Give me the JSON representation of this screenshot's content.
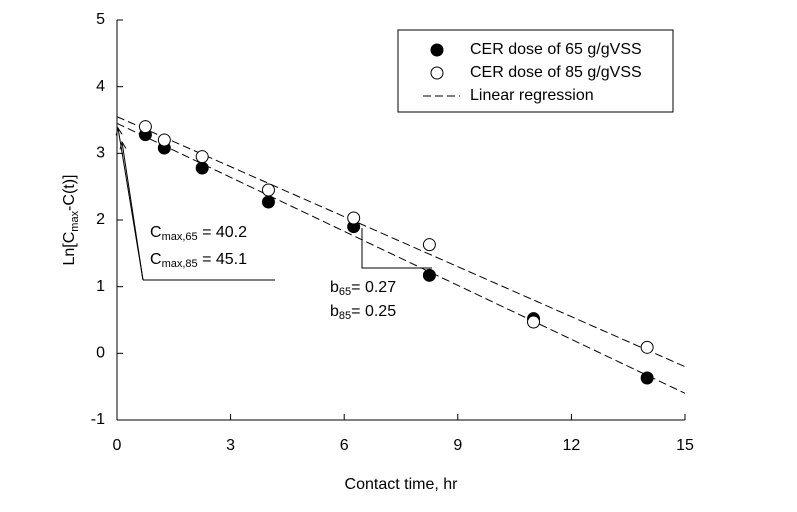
{
  "chart_data": {
    "type": "scatter",
    "x_label": "Contact time, hr",
    "y_label": {
      "main": "Ln[C",
      "sub": "max",
      "rest": "-C(t)]"
    },
    "x": [
      0.75,
      1.25,
      2.25,
      4.0,
      6.25,
      8.25,
      11.0,
      14.0
    ],
    "series": [
      {
        "name": "CER dose of 65 g/gVSS",
        "color": "#000000",
        "fill": "filled",
        "values": [
          3.28,
          3.08,
          2.78,
          2.27,
          1.9,
          1.17,
          0.52,
          -0.37
        ]
      },
      {
        "name": "CER dose of 85 g/gVSS",
        "color": "#000000",
        "fill": "open",
        "values": [
          3.4,
          3.2,
          2.95,
          2.45,
          2.03,
          1.63,
          0.47,
          0.09
        ]
      }
    ],
    "regression": {
      "name": "Linear regression",
      "lines": [
        {
          "x": [
            0,
            15
          ],
          "values": [
            3.45,
            -0.6
          ]
        },
        {
          "x": [
            0,
            15
          ],
          "values": [
            3.55,
            -0.2
          ]
        }
      ]
    },
    "annotations": [
      {
        "base": "C",
        "sub": "max,65",
        "rest": " = 40.2"
      },
      {
        "base": "C",
        "sub": "max,85",
        "rest": " = 45.1"
      },
      {
        "base": "b",
        "sub": "65",
        "rest": "= 0.27"
      },
      {
        "base": "b",
        "sub": "85",
        "rest": "= 0.25"
      }
    ],
    "xlim": [
      0,
      15
    ],
    "xticks": [
      0,
      3,
      6,
      9,
      12,
      15
    ],
    "ylim": [
      -1,
      5
    ],
    "yticks": [
      -1,
      0,
      1,
      2,
      3,
      4,
      5
    ],
    "legend": "upper-right"
  }
}
